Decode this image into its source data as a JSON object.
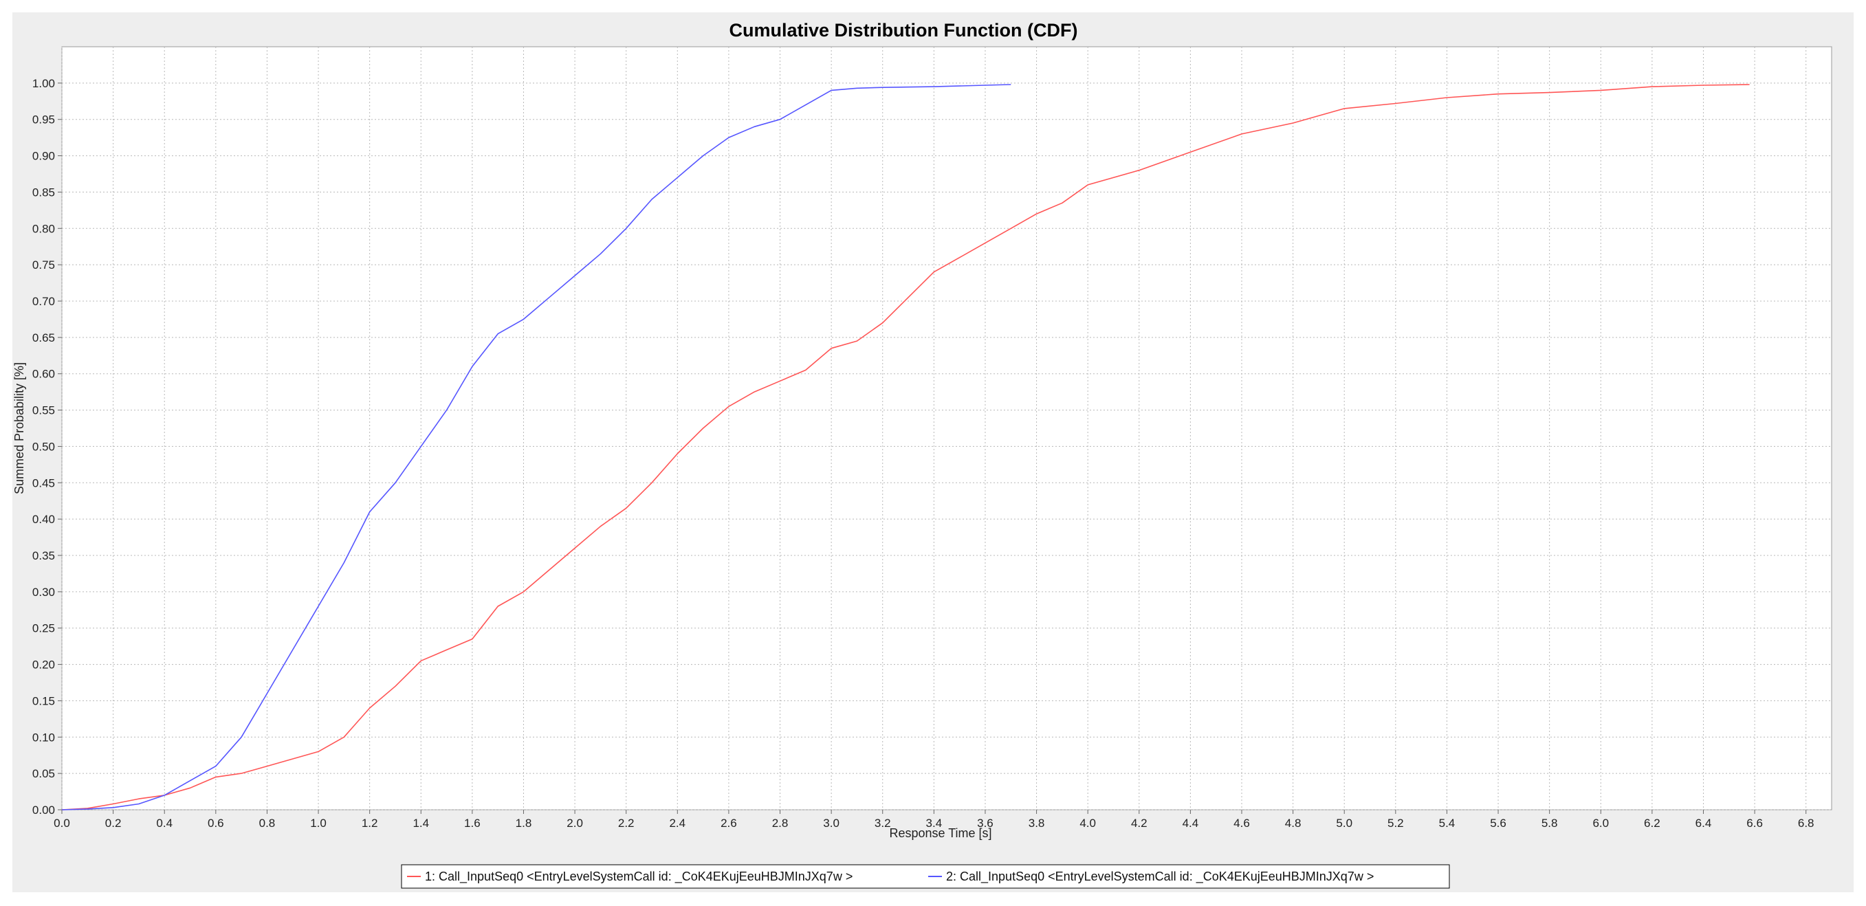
{
  "chart_data": {
    "type": "line",
    "title": "Cumulative Distribution Function (CDF)",
    "xlabel": "Response Time [s]",
    "ylabel": "Summed Probability [%]",
    "xlim": [
      0.0,
      6.9
    ],
    "ylim": [
      0.0,
      1.05
    ],
    "x_ticks": [
      "0.0",
      "0.2",
      "0.4",
      "0.6",
      "0.8",
      "1.0",
      "1.2",
      "1.4",
      "1.6",
      "1.8",
      "2.0",
      "2.2",
      "2.4",
      "2.6",
      "2.8",
      "3.0",
      "3.2",
      "3.4",
      "3.6",
      "3.8",
      "4.0",
      "4.2",
      "4.4",
      "4.6",
      "4.8",
      "5.0",
      "5.2",
      "5.4",
      "5.6",
      "5.8",
      "6.0",
      "6.2",
      "6.4",
      "6.6",
      "6.8"
    ],
    "y_ticks": [
      "0.00",
      "0.05",
      "0.10",
      "0.15",
      "0.20",
      "0.25",
      "0.30",
      "0.35",
      "0.40",
      "0.45",
      "0.50",
      "0.55",
      "0.60",
      "0.65",
      "0.70",
      "0.75",
      "0.80",
      "0.85",
      "0.90",
      "0.95",
      "1.00"
    ],
    "grid": true,
    "legend_position": "bottom-center",
    "series": [
      {
        "name": "1: Call_InputSeq0 <EntryLevelSystemCall id: _CoK4EKujEeuHBJMInJXq7w >",
        "color": "#ff5555",
        "x": [
          0.0,
          0.1,
          0.2,
          0.3,
          0.4,
          0.5,
          0.6,
          0.7,
          0.8,
          0.9,
          1.0,
          1.1,
          1.2,
          1.3,
          1.4,
          1.5,
          1.6,
          1.7,
          1.8,
          1.9,
          2.0,
          2.1,
          2.2,
          2.3,
          2.4,
          2.5,
          2.6,
          2.7,
          2.8,
          2.9,
          3.0,
          3.1,
          3.2,
          3.3,
          3.4,
          3.5,
          3.6,
          3.7,
          3.8,
          3.9,
          4.0,
          4.2,
          4.4,
          4.6,
          4.8,
          5.0,
          5.2,
          5.4,
          5.6,
          5.8,
          6.0,
          6.2,
          6.4,
          6.58
        ],
        "y": [
          0.0,
          0.002,
          0.008,
          0.015,
          0.02,
          0.03,
          0.045,
          0.05,
          0.06,
          0.07,
          0.08,
          0.1,
          0.14,
          0.17,
          0.205,
          0.22,
          0.235,
          0.28,
          0.3,
          0.33,
          0.36,
          0.39,
          0.415,
          0.45,
          0.49,
          0.525,
          0.555,
          0.575,
          0.59,
          0.605,
          0.635,
          0.645,
          0.67,
          0.705,
          0.74,
          0.76,
          0.78,
          0.8,
          0.82,
          0.835,
          0.86,
          0.88,
          0.905,
          0.93,
          0.945,
          0.965,
          0.972,
          0.98,
          0.985,
          0.987,
          0.99,
          0.995,
          0.997,
          0.998
        ]
      },
      {
        "name": "2: Call_InputSeq0 <EntryLevelSystemCall id: _CoK4EKujEeuHBJMInJXq7w >",
        "color": "#5555ff",
        "x": [
          0.0,
          0.1,
          0.2,
          0.3,
          0.4,
          0.5,
          0.6,
          0.7,
          0.8,
          0.9,
          1.0,
          1.1,
          1.2,
          1.3,
          1.4,
          1.5,
          1.6,
          1.7,
          1.8,
          1.9,
          2.0,
          2.1,
          2.2,
          2.3,
          2.4,
          2.5,
          2.6,
          2.7,
          2.8,
          2.9,
          3.0,
          3.1,
          3.2,
          3.4,
          3.6,
          3.7
        ],
        "y": [
          0.0,
          0.001,
          0.003,
          0.008,
          0.02,
          0.04,
          0.06,
          0.1,
          0.16,
          0.22,
          0.28,
          0.34,
          0.41,
          0.45,
          0.5,
          0.55,
          0.61,
          0.655,
          0.675,
          0.705,
          0.735,
          0.765,
          0.8,
          0.84,
          0.87,
          0.9,
          0.925,
          0.94,
          0.95,
          0.97,
          0.99,
          0.993,
          0.994,
          0.995,
          0.997,
          0.998
        ]
      }
    ]
  }
}
